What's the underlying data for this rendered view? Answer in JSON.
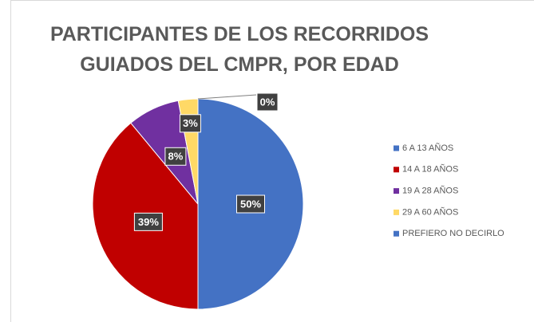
{
  "chart_data": {
    "type": "pie",
    "title": "PARTICIPANTES DE LOS RECORRIDOS GUIADOS DEL CMPR, POR EDAD",
    "categories": [
      "6 A 13 AÑOS",
      "14 A 18 AÑOS",
      "19 A 28 AÑOS",
      "29 A 60 AÑOS",
      "PREFIERO NO DECIRLO"
    ],
    "values": [
      50,
      39,
      8,
      3,
      0
    ],
    "value_labels": [
      "50%",
      "39%",
      "8%",
      "3%",
      "0%"
    ],
    "colors": [
      "#4472c4",
      "#c00000",
      "#7030a0",
      "#ffd966",
      "#4472c4"
    ],
    "legend": "right"
  }
}
